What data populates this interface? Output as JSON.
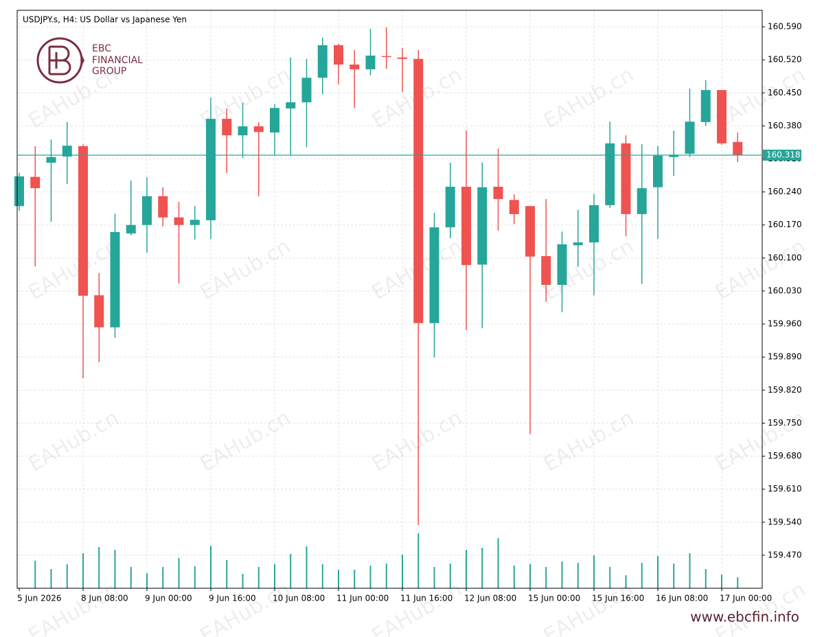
{
  "chart_data": {
    "type": "candlestick",
    "title": "USDJPY.s, H4:  US Dollar vs Japanese Yen",
    "categories": [
      "5 Jun 2026",
      null,
      null,
      null,
      "8 Jun 08:00",
      null,
      null,
      null,
      "9 Jun 00:00",
      null,
      null,
      null,
      "9 Jun 16:00",
      null,
      null,
      null,
      "10 Jun 08:00",
      null,
      null,
      null,
      "11 Jun 00:00",
      null,
      null,
      null,
      "11 Jun 16:00",
      null,
      null,
      null,
      "12 Jun 08:00",
      null,
      null,
      null,
      "15 Jun 00:00",
      null,
      null,
      null,
      "15 Jun 16:00",
      null,
      null,
      null,
      "16 Jun 08:00",
      null,
      null,
      null,
      "17 Jun 00:00",
      null
    ],
    "open": [
      160.21,
      160.272,
      160.302,
      160.315,
      160.337,
      160.021,
      159.953,
      160.152,
      160.17,
      160.231,
      160.186,
      160.17,
      160.18,
      160.395,
      160.36,
      160.379,
      160.366,
      160.417,
      160.43,
      160.482,
      160.551,
      160.51,
      160.5,
      160.528,
      160.525,
      160.522,
      159.962,
      160.165,
      160.251,
      160.086,
      160.251,
      160.223,
      160.21,
      160.104,
      160.043,
      160.127,
      160.133,
      160.212,
      160.343,
      160.193,
      160.25,
      160.314,
      160.321,
      160.388,
      160.456,
      160.346
    ],
    "high": [
      160.28,
      160.337,
      160.351,
      160.388,
      160.341,
      160.068,
      160.194,
      160.264,
      160.271,
      160.25,
      160.219,
      160.21,
      160.44,
      160.417,
      160.429,
      160.388,
      160.426,
      160.525,
      160.522,
      160.567,
      160.554,
      160.541,
      160.586,
      160.589,
      160.545,
      160.541,
      160.196,
      160.302,
      160.37,
      160.302,
      160.332,
      160.235,
      160.21,
      160.225,
      160.156,
      160.202,
      160.236,
      160.389,
      160.36,
      160.341,
      160.338,
      160.37,
      160.459,
      160.477,
      160.456,
      160.366
    ],
    "low": [
      160.2,
      160.082,
      160.177,
      160.257,
      159.845,
      159.879,
      159.931,
      160.148,
      160.111,
      160.167,
      160.046,
      160.139,
      160.14,
      160.28,
      160.312,
      160.231,
      160.318,
      160.318,
      160.335,
      160.447,
      160.468,
      160.418,
      160.487,
      160.501,
      160.452,
      159.534,
      159.889,
      160.142,
      159.947,
      159.951,
      160.158,
      160.172,
      159.727,
      160.007,
      159.985,
      160.081,
      160.021,
      160.206,
      160.146,
      160.045,
      160.14,
      160.274,
      160.314,
      160.38,
      160.34,
      160.303
    ],
    "close": [
      160.273,
      160.248,
      160.314,
      160.338,
      160.02,
      159.953,
      160.155,
      160.17,
      160.231,
      160.186,
      160.17,
      160.181,
      160.395,
      160.36,
      160.379,
      160.367,
      160.418,
      160.43,
      160.482,
      160.551,
      160.51,
      160.5,
      160.529,
      160.526,
      160.522,
      159.962,
      160.165,
      160.251,
      160.085,
      160.25,
      160.225,
      160.193,
      160.103,
      160.043,
      160.129,
      160.133,
      160.212,
      160.343,
      160.193,
      160.248,
      160.317,
      160.319,
      160.389,
      160.456,
      160.343,
      160.318
    ],
    "volume": [
      null,
      40,
      28,
      35,
      51,
      60,
      56,
      31,
      22,
      31,
      44,
      32,
      62,
      41,
      21,
      31,
      35,
      50,
      61,
      35,
      27,
      27,
      33,
      36,
      49,
      80,
      31,
      36,
      56,
      59,
      73,
      33,
      35,
      31,
      39,
      37,
      48,
      31,
      19,
      37,
      47,
      36,
      51,
      28,
      20,
      16
    ],
    "up_color": "#26a69a",
    "down_color": "#ef5350",
    "volume_color": "#26a69a",
    "ylim": [
      159.4,
      160.625
    ],
    "yticks": [
      {
        "value": 159.47,
        "label": "159.470"
      },
      {
        "value": 159.54,
        "label": "159.540"
      },
      {
        "value": 159.61,
        "label": "159.610"
      },
      {
        "value": 159.68,
        "label": "159.680"
      },
      {
        "value": 159.75,
        "label": "159.750"
      },
      {
        "value": 159.82,
        "label": "159.820"
      },
      {
        "value": 159.89,
        "label": "159.890"
      },
      {
        "value": 159.96,
        "label": "159.960"
      },
      {
        "value": 160.03,
        "label": "160.030"
      },
      {
        "value": 160.1,
        "label": "160.100"
      },
      {
        "value": 160.17,
        "label": "160.170"
      },
      {
        "value": 160.24,
        "label": "160.240"
      },
      {
        "value": 160.31,
        "label": "160.310"
      },
      {
        "value": 160.38,
        "label": "160.380"
      },
      {
        "value": 160.45,
        "label": "160.450"
      },
      {
        "value": 160.52,
        "label": "160.520"
      },
      {
        "value": 160.59,
        "label": "160.590"
      }
    ],
    "last_price": 160.318,
    "last_price_color": "#26a69a",
    "grid": true
  },
  "logo": {
    "line1": "EBC",
    "line2": "FINANCIAL",
    "line3": "GROUP"
  },
  "watermark": "EAHub.cn",
  "footer": "www.ebcfin.info"
}
